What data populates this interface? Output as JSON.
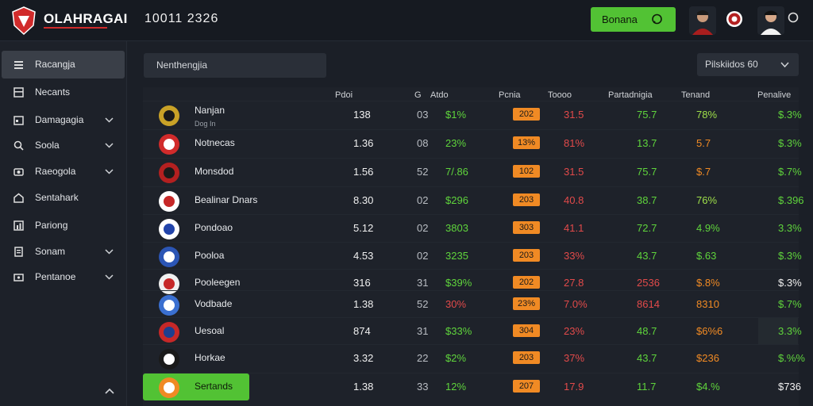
{
  "header": {
    "brand": "OLAHRAGAI",
    "clock": "10011 2326",
    "cta_label": "Bonana",
    "colors": {
      "accent": "#52c234",
      "brand_red": "#d12b2b",
      "orange": "#f08a24"
    }
  },
  "sidebar": {
    "items": [
      {
        "label": "Racangja",
        "icon": "list-icon",
        "chevron": false,
        "active": true
      },
      {
        "label": "Necants",
        "icon": "grid-icon",
        "chevron": false,
        "active": false
      },
      {
        "label": "Damagagia",
        "icon": "calendar-icon",
        "chevron": true,
        "active": false
      },
      {
        "label": "Soola",
        "icon": "search-icon",
        "chevron": true,
        "active": false
      },
      {
        "label": "Raeogola",
        "icon": "camera-icon",
        "chevron": true,
        "active": false
      },
      {
        "label": "Sentahark",
        "icon": "home-icon",
        "chevron": false,
        "active": false
      },
      {
        "label": "Pariong",
        "icon": "chart-icon",
        "chevron": false,
        "active": false
      },
      {
        "label": "Sonam",
        "icon": "document-icon",
        "chevron": true,
        "active": false
      },
      {
        "label": "Pentanoe",
        "icon": "settings-icon",
        "chevron": true,
        "active": false
      }
    ]
  },
  "toolbar": {
    "search_text": "Nenthengjia",
    "filter_label": "Pilskiidos 60"
  },
  "table": {
    "headers": [
      "Pdoi",
      "G",
      "Atdo",
      "Pcnia",
      "Toooo",
      "Partadnigia",
      "Tenand",
      "Penalive"
    ],
    "rows": [
      {
        "name": "Nanjan",
        "sub": "Dog In",
        "c1": "138",
        "c2": "03",
        "c3": "$1%",
        "c4": "202",
        "c5": "31.5",
        "c6": "75.7",
        "c7": "78%",
        "c8": "$.3%",
        "c3c": "g",
        "c5c": "r",
        "c6c": "g",
        "c7c": "y",
        "c8c": "g"
      },
      {
        "name": "Notnecas",
        "sub": "",
        "c1": "1.36",
        "c2": "08",
        "c3": "23%",
        "c4": "13%",
        "c5": "81%",
        "c6": "13.7",
        "c7": "5.7",
        "c8": "$.3%",
        "c3c": "g",
        "c5c": "r",
        "c6c": "g",
        "c7c": "o",
        "c8c": "g"
      },
      {
        "name": "Monsdod",
        "sub": "",
        "c1": "1.56",
        "c2": "52",
        "c3": "7/.86",
        "c4": "102",
        "c5": "31.5",
        "c6": "75.7",
        "c7": "$.7",
        "c8": "$.7%",
        "c3c": "g",
        "c5c": "r",
        "c6c": "g",
        "c7c": "o",
        "c8c": "g"
      },
      {
        "name": "Bealinar Dnars",
        "sub": "",
        "c1": "8.30",
        "c2": "02",
        "c3": "$296",
        "c4": "203",
        "c5": "40.8",
        "c6": "38.7",
        "c7": "76%",
        "c8": "$.396",
        "c3c": "g",
        "c5c": "r",
        "c6c": "g",
        "c7c": "y",
        "c8c": "g"
      },
      {
        "name": "Pondoao",
        "sub": "",
        "c1": "5.12",
        "c2": "02",
        "c3": "3803",
        "c4": "303",
        "c5": "41.1",
        "c6": "72.7",
        "c7": "4.9%",
        "c8": "3.3%",
        "c3c": "g",
        "c5c": "r",
        "c6c": "g",
        "c7c": "g",
        "c8c": "g"
      },
      {
        "name": "Pooloa",
        "sub": "",
        "c1": "4.53",
        "c2": "02",
        "c3": "3235",
        "c4": "203",
        "c5": "33%",
        "c6": "43.7",
        "c7": "$.63",
        "c8": "$.3%",
        "c3c": "g",
        "c5c": "r",
        "c6c": "g",
        "c7c": "g",
        "c8c": "g"
      },
      {
        "name": "Pooleegen",
        "sub": "",
        "c1": "316",
        "c2": "31",
        "c3": "$39%",
        "c4": "202",
        "c5": "27.8",
        "c6": "2536",
        "c7": "$.8%",
        "c8": "$.3%",
        "c3c": "g",
        "c5c": "r",
        "c6c": "r",
        "c7c": "o",
        "c8c": "w"
      },
      {
        "name": "Vodbade",
        "sub": "",
        "c1": "1.38",
        "c2": "52",
        "c3": "30%",
        "c4": "23%",
        "c5": "7.0%",
        "c6": "8614",
        "c7": "8310",
        "c8": "$.7%",
        "c3c": "r",
        "c5c": "r",
        "c6c": "r",
        "c7c": "o",
        "c8c": "g"
      },
      {
        "name": "Uesoal",
        "sub": "",
        "c1": "874",
        "c2": "31",
        "c3": "$33%",
        "c4": "304",
        "c5": "23%",
        "c6": "48.7",
        "c7": "$6%6",
        "c8": "3.3%",
        "c3c": "g",
        "c5c": "r",
        "c6c": "g",
        "c7c": "o",
        "c8c": "g"
      },
      {
        "name": "Horkae",
        "sub": "",
        "c1": "3.32",
        "c2": "22",
        "c3": "$2%",
        "c4": "203",
        "c5": "37%",
        "c6": "43.7",
        "c7": "$236",
        "c8": "$.%%",
        "c3c": "g",
        "c5c": "r",
        "c6c": "g",
        "c7c": "o",
        "c8c": "g"
      },
      {
        "name": "Sertands",
        "sub": "",
        "c1": "1.38",
        "c2": "33",
        "c3": "12%",
        "c4": "207",
        "c5": "17.9",
        "c6": "11.7",
        "c7": "$4.%",
        "c8": "$736",
        "c3c": "g",
        "c5c": "r",
        "c6c": "g",
        "c7c": "g",
        "c8c": "w"
      }
    ]
  }
}
